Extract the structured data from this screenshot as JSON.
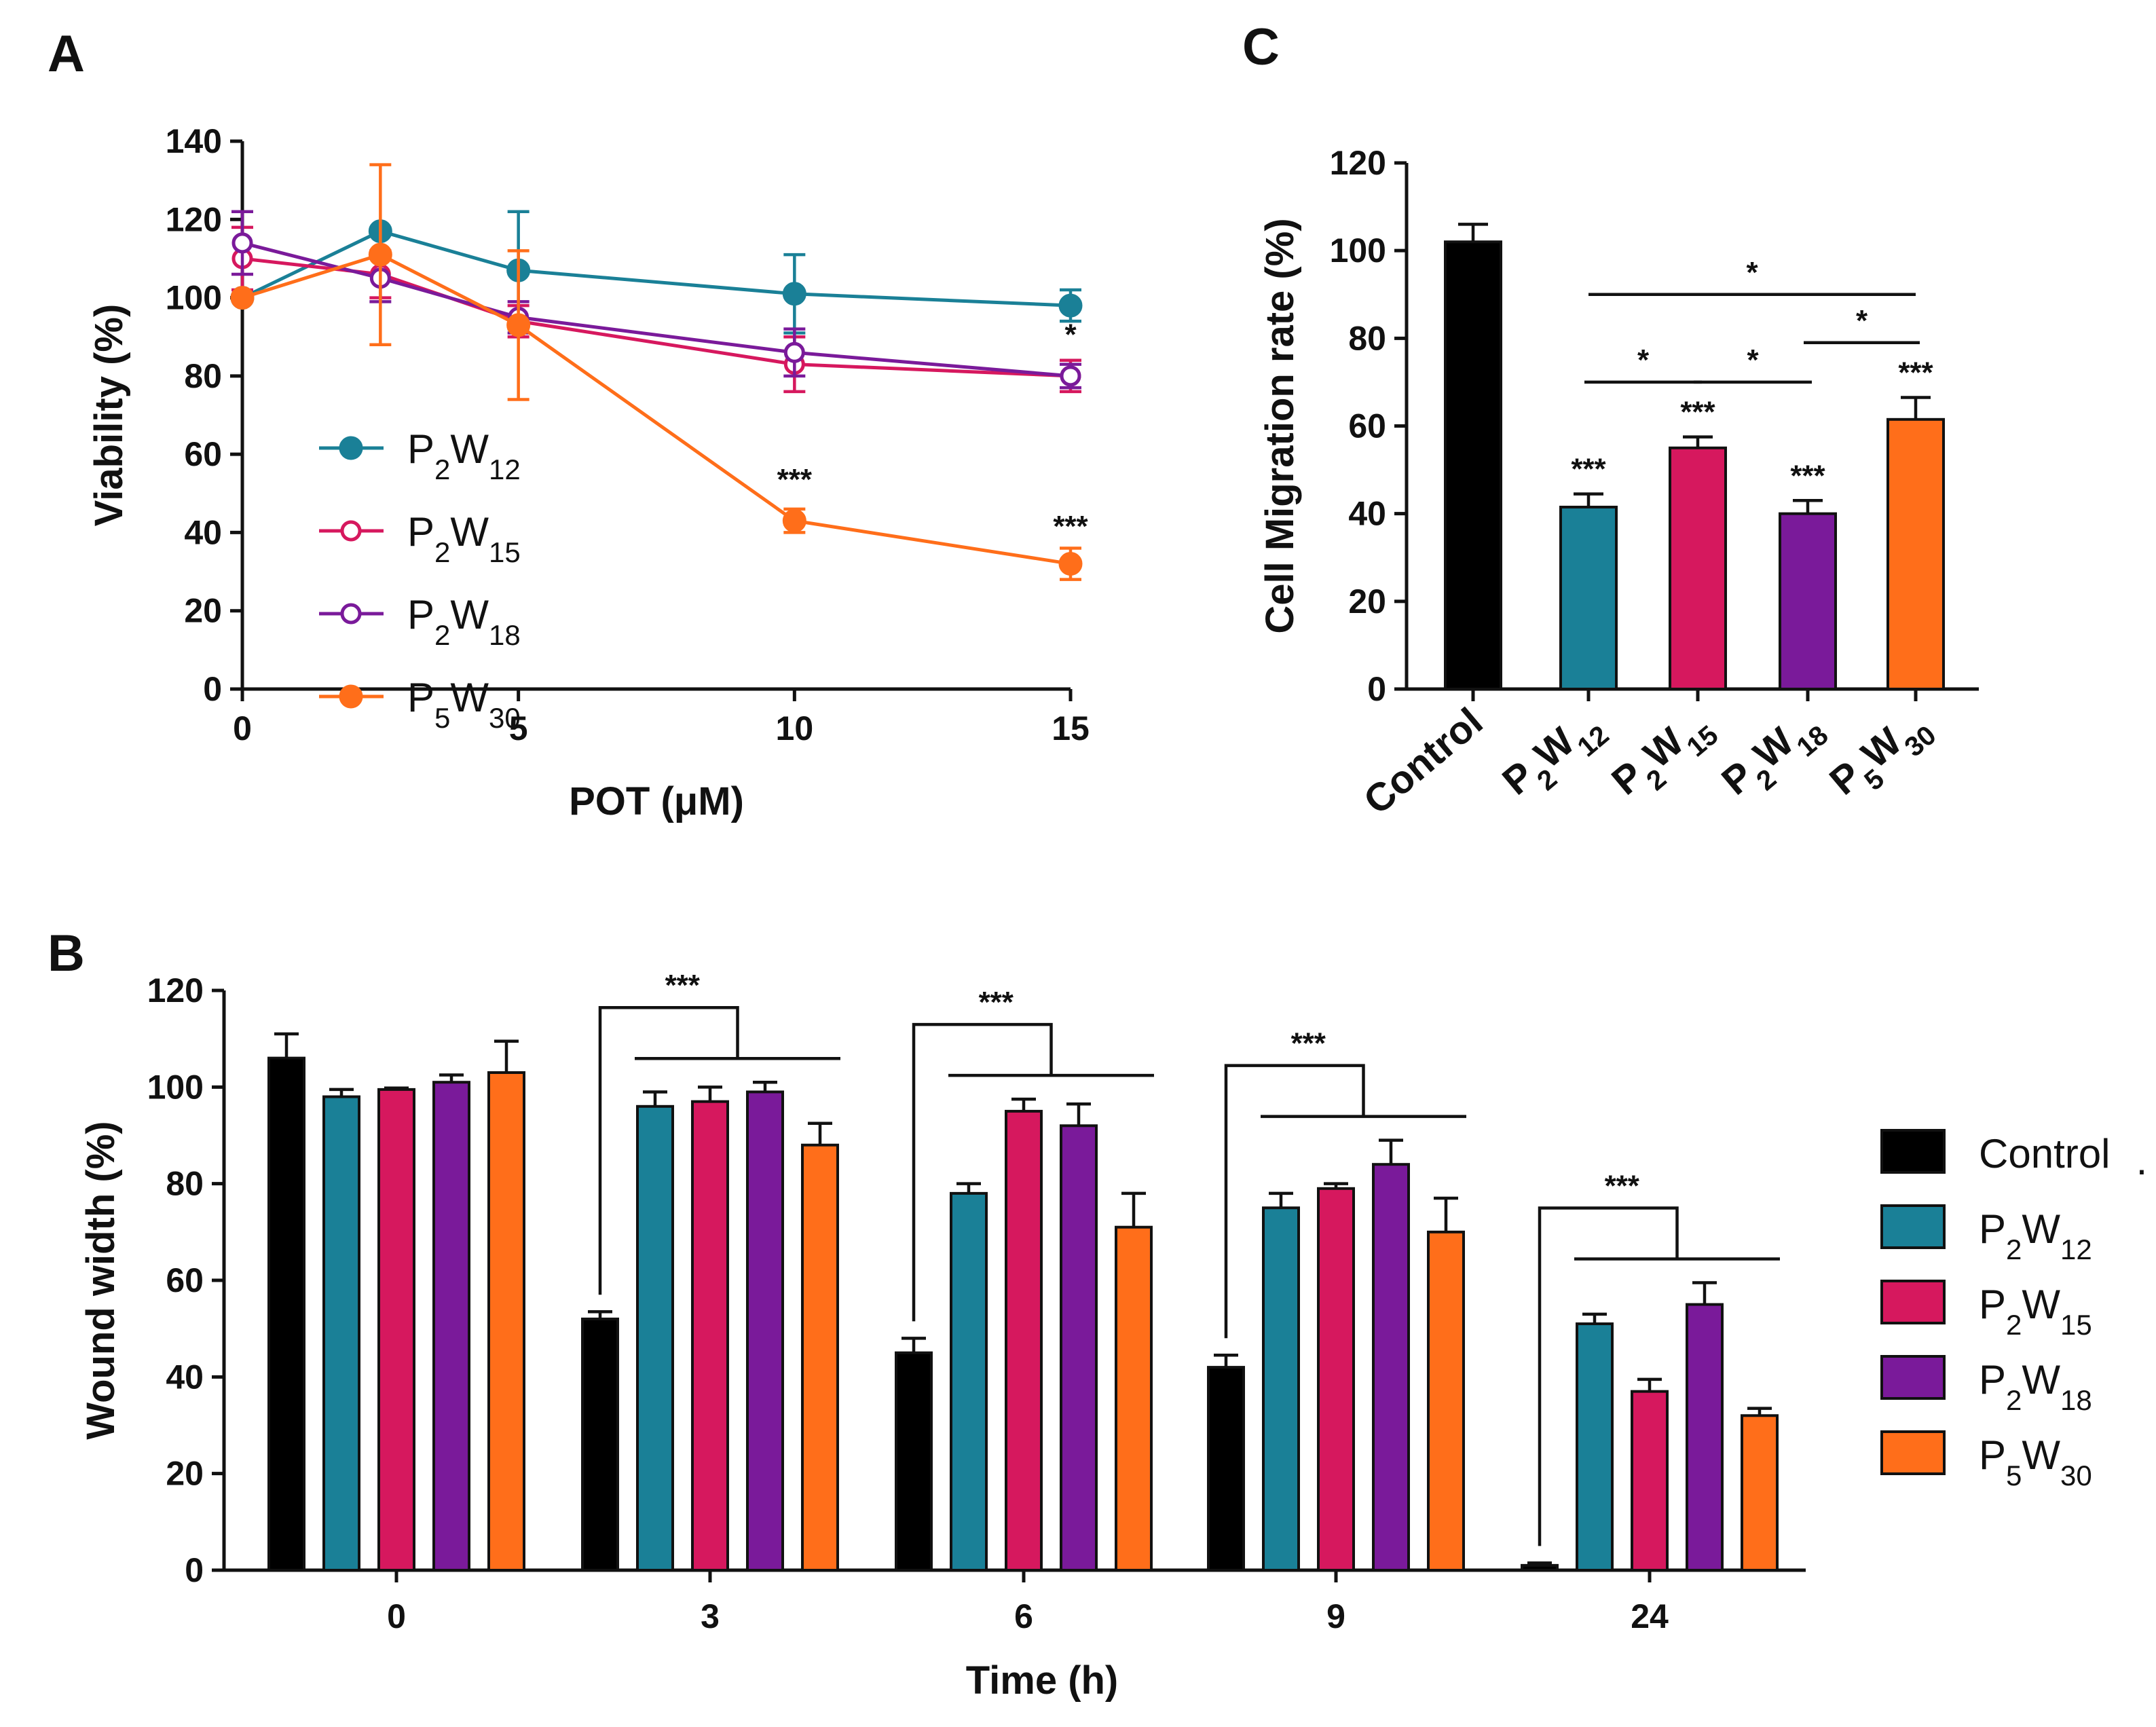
{
  "chart_data": [
    {
      "panel": "A",
      "type": "line",
      "xlabel": "POT (μM)",
      "ylabel": "Viability (%)",
      "xlim": [
        0,
        15
      ],
      "ylim": [
        0,
        140
      ],
      "xticks": [
        0,
        5,
        10,
        15
      ],
      "yticks": [
        0,
        20,
        40,
        60,
        80,
        100,
        120,
        140
      ],
      "x": [
        0,
        2.5,
        5,
        10,
        15
      ],
      "legend_position": "center-left",
      "series": [
        {
          "name": "P2W12",
          "label": {
            "base": "P",
            "s1": "2",
            "mid": "W",
            "s2": "12"
          },
          "color": "#1a8097",
          "marker": "filled",
          "values": [
            100,
            117,
            107,
            101,
            98
          ],
          "errors": [
            0,
            0,
            15,
            10,
            4
          ]
        },
        {
          "name": "P2W15",
          "label": {
            "base": "P",
            "s1": "2",
            "mid": "W",
            "s2": "15"
          },
          "color": "#d6185e",
          "marker": "open",
          "values": [
            110,
            106,
            94,
            83,
            80
          ],
          "errors": [
            8,
            6,
            4,
            7,
            4
          ]
        },
        {
          "name": "P2W18",
          "label": {
            "base": "P",
            "s1": "2",
            "mid": "W",
            "s2": "18"
          },
          "color": "#7a1a9a",
          "marker": "open",
          "values": [
            114,
            105,
            95,
            86,
            80
          ],
          "errors": [
            8,
            6,
            4,
            6,
            3
          ]
        },
        {
          "name": "P5W30",
          "label": {
            "base": "P",
            "s1": "5",
            "mid": "W",
            "s2": "30"
          },
          "color": "#ff6e1a",
          "marker": "filled",
          "values": [
            100,
            111,
            93,
            43,
            32
          ],
          "errors": [
            0,
            23,
            19,
            3,
            4
          ]
        }
      ],
      "annotations": [
        {
          "text": "*",
          "x": 15,
          "y": 88
        },
        {
          "text": "***",
          "x": 10,
          "y": 51
        },
        {
          "text": "***",
          "x": 15,
          "y": 39
        }
      ]
    },
    {
      "panel": "B",
      "type": "bar",
      "xlabel": "Time (h)",
      "ylabel": "Wound width (%)",
      "ylim": [
        0,
        120
      ],
      "yticks": [
        0,
        20,
        40,
        60,
        80,
        100,
        120
      ],
      "categories": [
        "0",
        "3",
        "6",
        "9",
        "24"
      ],
      "legend_position": "right",
      "series": [
        {
          "name": "Control",
          "label": {
            "base": "Control",
            "s1": "",
            "mid": "",
            "s2": ""
          },
          "color": "#000000",
          "values": [
            106,
            52,
            45,
            42,
            1
          ],
          "errors": [
            5,
            1.5,
            3,
            2.5,
            0.5
          ]
        },
        {
          "name": "P2W12",
          "label": {
            "base": "P",
            "s1": "2",
            "mid": "W",
            "s2": "12"
          },
          "color": "#1a8097",
          "values": [
            98,
            96,
            78,
            75,
            51
          ],
          "errors": [
            1.5,
            3,
            2,
            3,
            2
          ]
        },
        {
          "name": "P2W15",
          "label": {
            "base": "P",
            "s1": "2",
            "mid": "W",
            "s2": "15"
          },
          "color": "#d6185e",
          "values": [
            99.5,
            97,
            95,
            79,
            37
          ],
          "errors": [
            0.3,
            3,
            2.5,
            1,
            2.5
          ]
        },
        {
          "name": "P2W18",
          "label": {
            "base": "P",
            "s1": "2",
            "mid": "W",
            "s2": "18"
          },
          "color": "#7a1a9a",
          "values": [
            101,
            99,
            92,
            84,
            55
          ],
          "errors": [
            1.5,
            2,
            4.5,
            5,
            4.5
          ]
        },
        {
          "name": "P5W30",
          "label": {
            "base": "P",
            "s1": "5",
            "mid": "W",
            "s2": "30"
          },
          "color": "#ff6e1a",
          "values": [
            103,
            88,
            71,
            70,
            32
          ],
          "errors": [
            6.5,
            4.5,
            7,
            7,
            1.5
          ]
        }
      ],
      "annotations": [
        {
          "text": "***",
          "group": "3"
        },
        {
          "text": "***",
          "group": "6"
        },
        {
          "text": "***",
          "group": "9"
        },
        {
          "text": "***",
          "group": "24"
        }
      ]
    },
    {
      "panel": "C",
      "type": "bar",
      "xlabel": "",
      "ylabel": "Cell Migration rate (%)",
      "ylim": [
        0,
        120
      ],
      "yticks": [
        0,
        20,
        40,
        60,
        80,
        100,
        120
      ],
      "categories": [
        {
          "base": "Control",
          "s1": "",
          "mid": "",
          "s2": ""
        },
        {
          "base": "P",
          "s1": "2",
          "mid": "W",
          "s2": "12"
        },
        {
          "base": "P",
          "s1": "2",
          "mid": "W",
          "s2": "15"
        },
        {
          "base": "P",
          "s1": "2",
          "mid": "W",
          "s2": "18"
        },
        {
          "base": "P",
          "s1": "5",
          "mid": "W",
          "s2": "30"
        }
      ],
      "colors": [
        "#000000",
        "#1a8097",
        "#d6185e",
        "#7a1a9a",
        "#ff6e1a"
      ],
      "values": [
        102,
        41.5,
        55,
        40,
        61.5
      ],
      "errors": [
        4,
        3,
        2.5,
        3,
        5
      ],
      "bar_annotations": [
        "",
        "***",
        "***",
        "***",
        "***"
      ],
      "brackets": [
        {
          "from": 1,
          "to": 2,
          "text": "*"
        },
        {
          "from": 2,
          "to": 3,
          "text": "*"
        },
        {
          "from": 3,
          "to": 4,
          "text": "*"
        },
        {
          "from": 1,
          "to": 4,
          "text": "*"
        }
      ]
    }
  ],
  "panel_labels": {
    "a": "A",
    "b": "B",
    "c": "C"
  },
  "legend_dot": "."
}
